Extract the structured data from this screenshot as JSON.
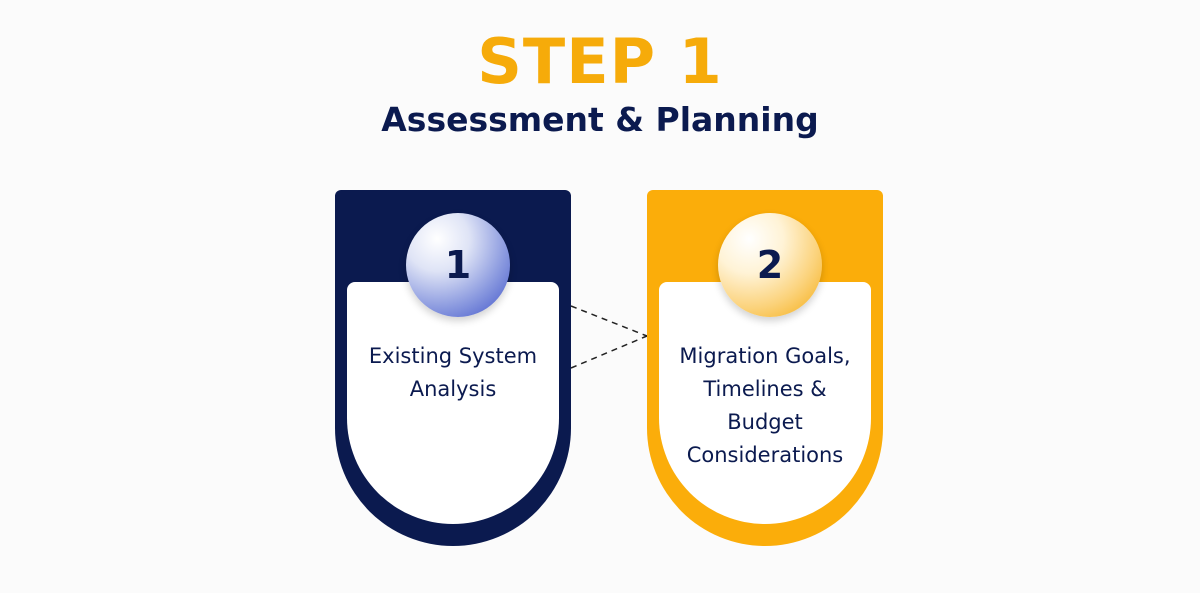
{
  "header": {
    "title": "STEP 1",
    "subtitle": "Assessment & Planning"
  },
  "cards": [
    {
      "number": "1",
      "lines": [
        "Existing System",
        "Analysis"
      ],
      "color": "#0b1a4f"
    },
    {
      "number": "2",
      "lines": [
        "Migration Goals,",
        "Timelines &",
        "Budget",
        "Considerations"
      ],
      "color": "#fbad0a"
    }
  ],
  "colors": {
    "accent": "#f6ab0a",
    "navy": "#0b1a4f",
    "background": "#fbfbfb"
  }
}
